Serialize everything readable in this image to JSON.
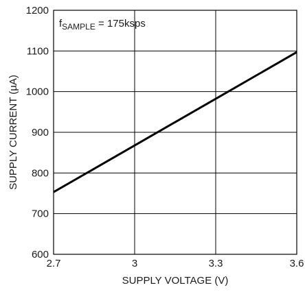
{
  "chart_data": {
    "type": "line",
    "xlabel": "SUPPLY VOLTAGE (V)",
    "ylabel": "SUPPLY CURRENT (µA)",
    "xlim": [
      2.7,
      3.6
    ],
    "ylim": [
      600,
      1200
    ],
    "x_ticks": [
      2.7,
      3,
      3.3,
      3.6
    ],
    "x_tick_labels": [
      "2.7",
      "3",
      "3.3",
      "3.6"
    ],
    "y_ticks": [
      600,
      700,
      800,
      900,
      1000,
      1100,
      1200
    ],
    "y_tick_labels": [
      "600",
      "700",
      "800",
      "900",
      "1000",
      "1100",
      "1200"
    ],
    "grid": true,
    "annotation": {
      "prefix": "f",
      "subscript": "SAMPLE",
      "suffix": " = 175ksps"
    },
    "series": [
      {
        "x": [
          2.7,
          3.6
        ],
        "y": [
          753,
          1097
        ],
        "color": "#000000"
      }
    ]
  }
}
